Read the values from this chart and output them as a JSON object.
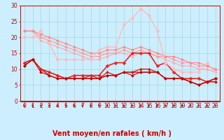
{
  "xlabel": "Vent moyen/en rafales ( km/h )",
  "bg_color": "#cceeff",
  "grid_color": "#aadddd",
  "xlim": [
    -0.5,
    23.5
  ],
  "ylim": [
    0,
    30
  ],
  "yticks": [
    0,
    5,
    10,
    15,
    20,
    25,
    30
  ],
  "xticks": [
    0,
    1,
    2,
    3,
    4,
    5,
    6,
    7,
    8,
    9,
    10,
    11,
    12,
    13,
    14,
    15,
    16,
    17,
    18,
    19,
    20,
    21,
    22,
    23
  ],
  "lines": [
    {
      "x": [
        0,
        1,
        2,
        3,
        4,
        5,
        6,
        7,
        8,
        9,
        10,
        11,
        12,
        13,
        14,
        15,
        16,
        17,
        18,
        19,
        20,
        21,
        22,
        23
      ],
      "y": [
        22,
        22,
        19,
        18,
        17,
        16,
        15,
        14,
        13,
        13,
        14,
        15,
        15,
        14,
        15,
        15,
        14,
        13,
        12,
        11,
        11,
        10,
        10,
        9
      ],
      "color": "#ffaaaa",
      "lw": 0.8,
      "marker": "D",
      "ms": 2.0
    },
    {
      "x": [
        0,
        1,
        2,
        3,
        4,
        5,
        6,
        7,
        8,
        9,
        10,
        11,
        12,
        13,
        14,
        15,
        16,
        17,
        18,
        19,
        20,
        21,
        22,
        23
      ],
      "y": [
        22,
        22,
        20,
        19,
        18,
        17,
        16,
        15,
        14,
        14,
        15,
        15,
        16,
        15,
        16,
        15,
        14,
        14,
        13,
        12,
        12,
        11,
        11,
        10
      ],
      "color": "#ff9999",
      "lw": 0.8,
      "marker": "D",
      "ms": 2.0
    },
    {
      "x": [
        0,
        1,
        2,
        3,
        4,
        5,
        6,
        7,
        8,
        9,
        10,
        11,
        12,
        13,
        14,
        15,
        16,
        17,
        18,
        19,
        20,
        21,
        22,
        23
      ],
      "y": [
        22,
        22,
        21,
        20,
        19,
        18,
        17,
        16,
        15,
        15,
        16,
        16,
        17,
        16,
        17,
        16,
        15,
        14,
        14,
        13,
        12,
        12,
        11,
        10
      ],
      "color": "#ff8888",
      "lw": 0.8,
      "marker": "D",
      "ms": 2.0
    },
    {
      "x": [
        0,
        1,
        2,
        3,
        4,
        5,
        6,
        7,
        8,
        9,
        10,
        11,
        12,
        13,
        14,
        15,
        16,
        17,
        18,
        19,
        20,
        21,
        22,
        23
      ],
      "y": [
        11,
        13,
        10,
        8,
        7,
        7,
        7,
        7,
        7,
        7,
        8,
        8,
        9,
        9,
        9,
        9,
        9,
        7,
        7,
        7,
        6,
        5,
        6,
        6
      ],
      "color": "#cc0000",
      "lw": 0.9,
      "marker": "D",
      "ms": 2.0
    },
    {
      "x": [
        0,
        1,
        2,
        3,
        4,
        5,
        6,
        7,
        8,
        9,
        10,
        11,
        12,
        13,
        14,
        15,
        16,
        17,
        18,
        19,
        20,
        21,
        22,
        23
      ],
      "y": [
        12,
        13,
        10,
        9,
        8,
        7,
        7,
        7,
        8,
        7,
        9,
        8,
        9,
        9,
        10,
        10,
        9,
        7,
        7,
        7,
        6,
        5,
        6,
        6
      ],
      "color": "#dd1111",
      "lw": 0.9,
      "marker": "D",
      "ms": 2.0
    },
    {
      "x": [
        0,
        1,
        2,
        3,
        4,
        5,
        6,
        7,
        8,
        9,
        10,
        11,
        12,
        13,
        14,
        15,
        16,
        17,
        18,
        19,
        20,
        21,
        22,
        23
      ],
      "y": [
        12,
        13,
        10,
        9,
        8,
        7,
        8,
        8,
        8,
        8,
        11,
        12,
        12,
        15,
        15,
        15,
        11,
        12,
        9,
        7,
        7,
        7,
        6,
        7
      ],
      "color": "#ee2222",
      "lw": 1.2,
      "marker": "D",
      "ms": 2.5
    },
    {
      "x": [
        0,
        1,
        2,
        3,
        4,
        5,
        6,
        7,
        8,
        9,
        10,
        11,
        12,
        13,
        14,
        15,
        16,
        17,
        18,
        19,
        20,
        21,
        22,
        23
      ],
      "y": [
        11,
        13,
        9,
        8,
        7,
        7,
        7,
        7,
        7,
        7,
        8,
        8,
        9,
        8,
        9,
        9,
        9,
        7,
        7,
        7,
        6,
        5,
        6,
        7
      ],
      "color": "#bb0000",
      "lw": 0.8,
      "marker": "D",
      "ms": 2.0
    },
    {
      "x": [
        0,
        1,
        2,
        3,
        4,
        5,
        6,
        7,
        8,
        9,
        10,
        11,
        12,
        13,
        14,
        15,
        16,
        17,
        18,
        19,
        20,
        21,
        22,
        23
      ],
      "y": [
        20,
        20,
        22,
        18,
        13,
        13,
        13,
        13,
        13,
        16,
        17,
        17,
        24,
        26,
        29,
        27,
        22,
        12,
        10,
        9,
        9,
        9,
        12,
        9
      ],
      "color": "#ffbbbb",
      "lw": 1.0,
      "marker": "D",
      "ms": 2.5
    }
  ],
  "arrow_color": "#cc0000",
  "xlabel_color": "#cc0000",
  "xlabel_fontsize": 7,
  "tick_fontsize": 5.5,
  "tick_color": "#cc0000",
  "axis_color": "#cc0000"
}
